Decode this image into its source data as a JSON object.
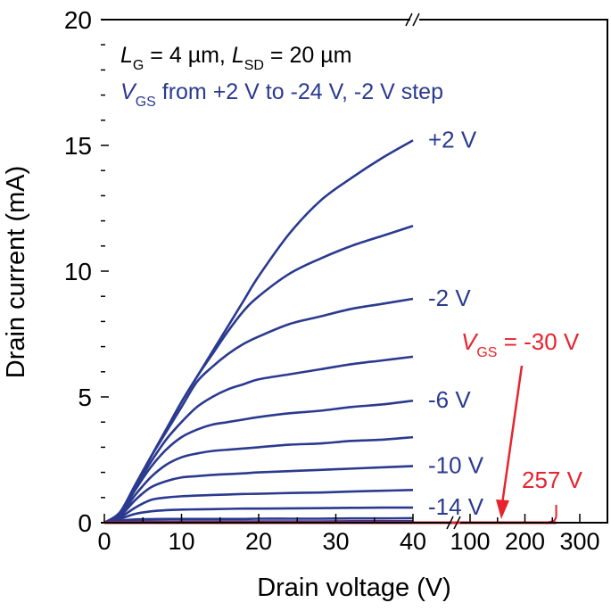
{
  "chart_data": {
    "type": "line",
    "xlabel": "Drain voltage (V)",
    "ylabel": "Drain current (mA)",
    "xlim_left": [
      0,
      40
    ],
    "xlim_right": [
      100,
      300
    ],
    "ylim": [
      0,
      20
    ],
    "x_ticks_left": [
      "0",
      "10",
      "20",
      "30",
      "40"
    ],
    "x_ticks_right": [
      "100",
      "200",
      "300"
    ],
    "y_ticks": [
      "0",
      "5",
      "10",
      "15",
      "20"
    ],
    "axis_break": true,
    "grid": false,
    "annotation_line1": {
      "L1": "L",
      "L1_sub": "G",
      "mid": " = 4 µm, ",
      "L2": "L",
      "L2_sub": "SD",
      "end": " = 20 µm"
    },
    "annotation_line2": {
      "V": "V",
      "V_sub": "GS",
      "text": " from +2 V to -24 V, -2 V step"
    },
    "red_label": {
      "V": "V",
      "V_sub": "GS",
      "text": " = -30 V"
    },
    "red_value_label": "257 V",
    "colors": {
      "blue": "#2b3a8f",
      "red": "#e8232e",
      "axis": "#000000"
    },
    "x": [
      0,
      2,
      4,
      6,
      8,
      10,
      12,
      14,
      16,
      18,
      20,
      24,
      28,
      32,
      36,
      40
    ],
    "series": [
      {
        "vgs": "+2 V",
        "label": "+2 V",
        "values": [
          0,
          0.4,
          1.5,
          2.6,
          3.7,
          4.8,
          5.8,
          6.8,
          7.8,
          8.8,
          9.8,
          11.5,
          12.8,
          13.7,
          14.5,
          15.2
        ]
      },
      {
        "vgs": "0 V",
        "values": [
          0,
          0.4,
          1.5,
          2.6,
          3.7,
          4.8,
          5.8,
          6.7,
          7.6,
          8.4,
          9.0,
          9.9,
          10.5,
          11.0,
          11.4,
          11.8
        ]
      },
      {
        "vgs": "-2 V",
        "label": "-2 V",
        "values": [
          0,
          0.4,
          1.5,
          2.6,
          3.6,
          4.6,
          5.6,
          6.2,
          6.7,
          7.1,
          7.4,
          7.9,
          8.2,
          8.5,
          8.7,
          8.9
        ]
      },
      {
        "vgs": "-4 V",
        "values": [
          0,
          0.4,
          1.4,
          2.4,
          3.3,
          4.0,
          4.6,
          5.0,
          5.3,
          5.5,
          5.7,
          5.9,
          6.1,
          6.3,
          6.45,
          6.6
        ]
      },
      {
        "vgs": "-6 V",
        "label": "-6 V",
        "values": [
          0,
          0.35,
          1.3,
          2.2,
          2.9,
          3.4,
          3.7,
          3.9,
          4.0,
          4.1,
          4.2,
          4.35,
          4.45,
          4.6,
          4.7,
          4.85
        ]
      },
      {
        "vgs": "-8 V",
        "values": [
          0,
          0.3,
          1.1,
          1.8,
          2.3,
          2.6,
          2.75,
          2.85,
          2.9,
          2.95,
          3.0,
          3.1,
          3.15,
          3.25,
          3.3,
          3.4
        ]
      },
      {
        "vgs": "-10 V",
        "label": "-10 V",
        "values": [
          0,
          0.25,
          0.9,
          1.4,
          1.65,
          1.8,
          1.85,
          1.9,
          1.93,
          1.96,
          2.0,
          2.05,
          2.1,
          2.15,
          2.2,
          2.25
        ]
      },
      {
        "vgs": "-12 V",
        "values": [
          0,
          0.2,
          0.6,
          0.9,
          1.0,
          1.05,
          1.08,
          1.1,
          1.12,
          1.14,
          1.15,
          1.18,
          1.2,
          1.24,
          1.27,
          1.3
        ]
      },
      {
        "vgs": "-14 V",
        "label": "-14 V",
        "values": [
          0,
          0.15,
          0.35,
          0.45,
          0.5,
          0.52,
          0.53,
          0.54,
          0.55,
          0.56,
          0.56,
          0.57,
          0.58,
          0.59,
          0.6,
          0.6
        ]
      },
      {
        "vgs": "-16 V",
        "values": [
          0,
          0.08,
          0.13,
          0.14,
          0.15,
          0.15,
          0.15,
          0.15,
          0.15,
          0.15,
          0.16,
          0.16,
          0.16,
          0.17,
          0.17,
          0.18
        ]
      },
      {
        "vgs": "-18 V",
        "values": [
          0,
          0.03,
          0.05,
          0.05,
          0.05,
          0.05,
          0.05,
          0.05,
          0.05,
          0.05,
          0.05,
          0.05,
          0.05,
          0.06,
          0.06,
          0.06
        ]
      },
      {
        "vgs": "-20 V",
        "values": [
          0,
          0.01,
          0.02,
          0.02,
          0.02,
          0.02,
          0.02,
          0.02,
          0.02,
          0.02,
          0.02,
          0.02,
          0.02,
          0.02,
          0.02,
          0.02
        ]
      },
      {
        "vgs": "-22 V",
        "values": [
          0,
          0.01,
          0.01,
          0.01,
          0.01,
          0.01,
          0.01,
          0.01,
          0.01,
          0.01,
          0.01,
          0.01,
          0.01,
          0.01,
          0.01,
          0.01
        ]
      },
      {
        "vgs": "-24 V",
        "values": [
          0,
          0,
          0,
          0,
          0,
          0,
          0,
          0,
          0,
          0,
          0,
          0,
          0,
          0,
          0,
          0
        ]
      }
    ],
    "red_series": {
      "vgs": "-30 V",
      "x": [
        0,
        40,
        100,
        257
      ],
      "values": [
        0,
        0,
        0,
        0
      ]
    }
  }
}
